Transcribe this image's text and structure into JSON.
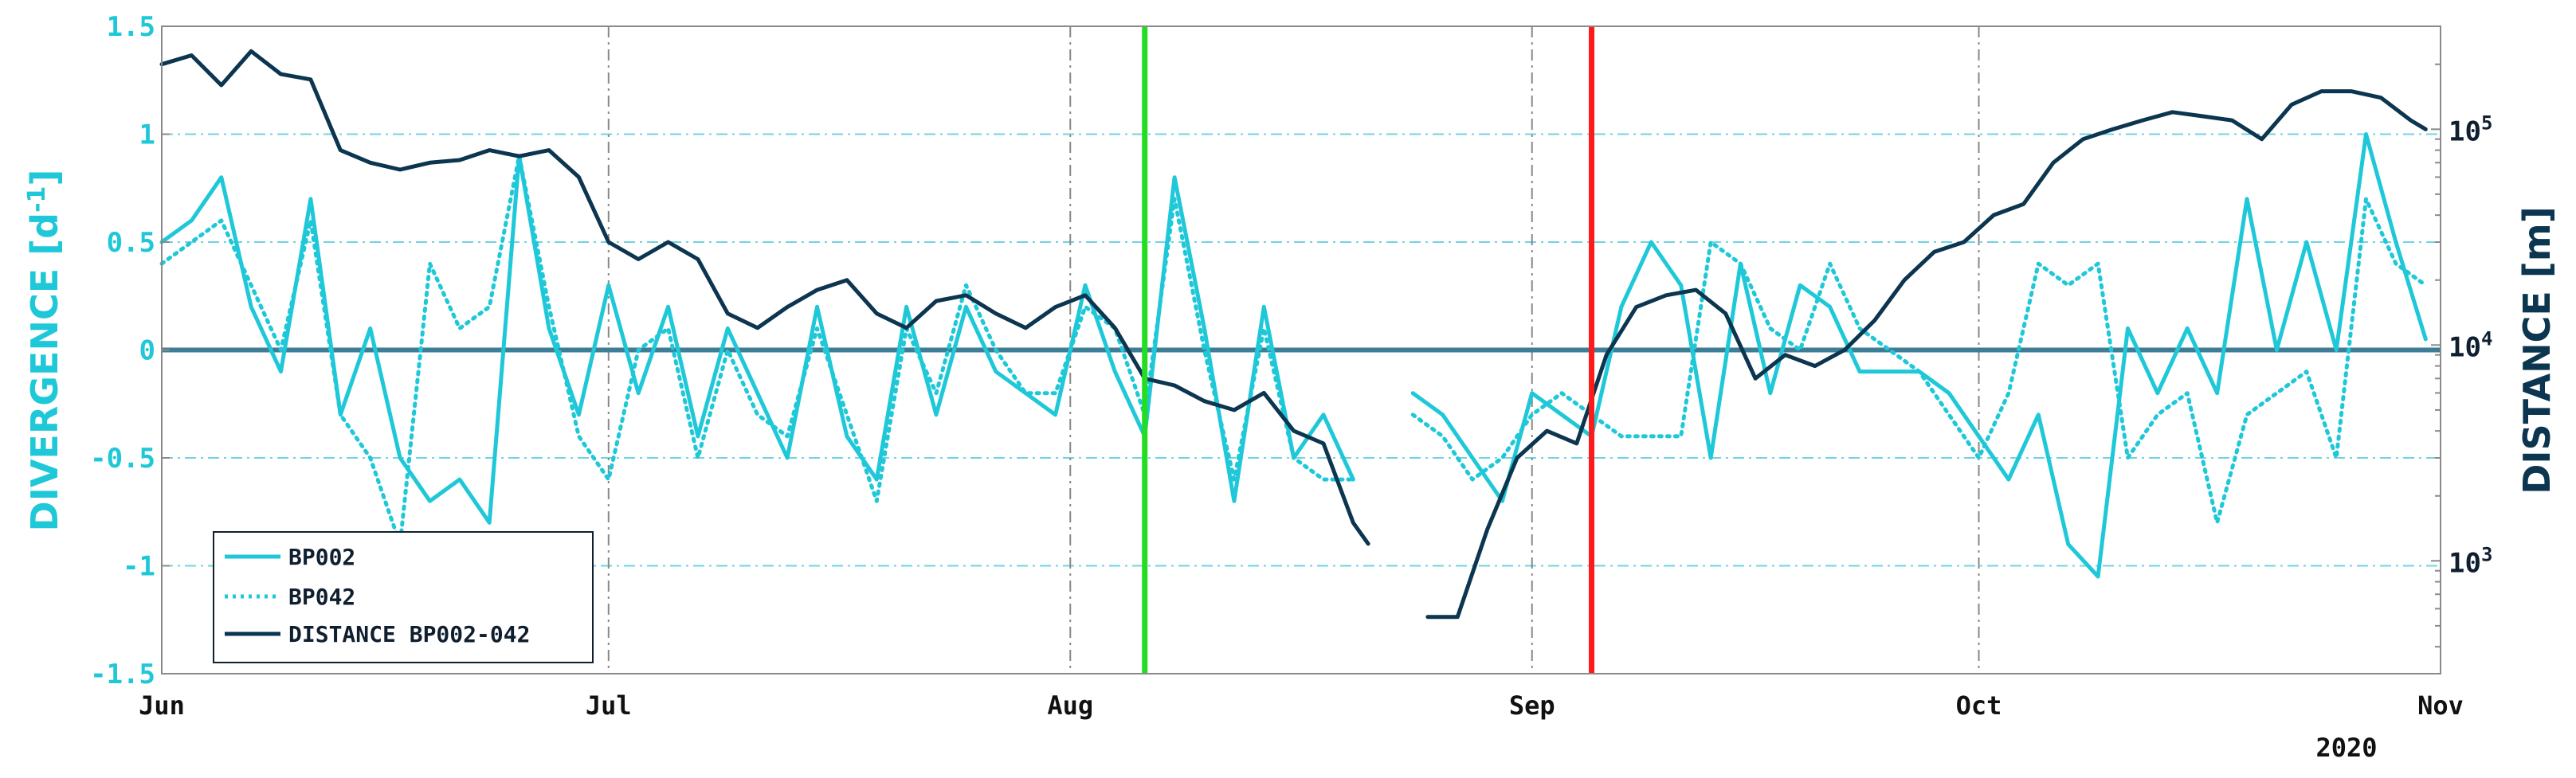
{
  "chart_data": {
    "type": "line",
    "year_label": "2020",
    "x_axis": {
      "ticks": [
        "Jun",
        "Jul",
        "Aug",
        "Sep",
        "Oct",
        "Nov"
      ],
      "range": [
        "2020-06-01",
        "2020-11-01"
      ]
    },
    "left_axis": {
      "label": "DIVERGENCE [d",
      "label_sup": "-1",
      "label_end": "]",
      "range": [
        -1.5,
        1.5
      ],
      "ticks": [
        "1.5",
        "1",
        "0.5",
        "0",
        "-0.5",
        "-1",
        "-1.5"
      ],
      "color": "#1fc8d8"
    },
    "right_axis": {
      "label": "DISTANCE [m]",
      "scale": "log",
      "range": [
        300,
        300000
      ],
      "ticks": [
        {
          "base": "10",
          "exp": "5",
          "value": 100000
        },
        {
          "base": "10",
          "exp": "4",
          "value": 10000
        },
        {
          "base": "10",
          "exp": "3",
          "value": 1000
        }
      ],
      "color": "#0c3550"
    },
    "grid": true,
    "zero_line": 0,
    "vertical_markers": [
      {
        "x": "2020-08-06",
        "color": "#22dd22"
      },
      {
        "x": "2020-09-05",
        "color": "#ff1a1a"
      }
    ],
    "legend": {
      "position": "bottom-left",
      "entries": [
        {
          "label": "BP002",
          "style": "solid",
          "color": "#1fc8d8"
        },
        {
          "label": "BP042",
          "style": "dotted",
          "color": "#1fc8d8"
        },
        {
          "label": "DISTANCE BP002-042",
          "style": "solid",
          "color": "#0c3550"
        }
      ]
    },
    "series": [
      {
        "name": "BP002",
        "axis": "left",
        "style": "solid",
        "color": "#1fc8d8",
        "segments": [
          {
            "x": [
              "2020-06-01",
              "2020-06-03",
              "2020-06-05",
              "2020-06-07",
              "2020-06-09",
              "2020-06-11",
              "2020-06-13",
              "2020-06-15",
              "2020-06-17",
              "2020-06-19",
              "2020-06-21",
              "2020-06-23",
              "2020-06-25",
              "2020-06-27",
              "2020-06-29",
              "2020-07-01",
              "2020-07-03",
              "2020-07-05",
              "2020-07-07",
              "2020-07-09",
              "2020-07-11",
              "2020-07-13",
              "2020-07-15",
              "2020-07-17",
              "2020-07-19",
              "2020-07-21",
              "2020-07-23",
              "2020-07-25",
              "2020-07-27",
              "2020-07-29",
              "2020-07-31",
              "2020-08-02",
              "2020-08-04",
              "2020-08-06",
              "2020-08-08",
              "2020-08-10",
              "2020-08-12",
              "2020-08-14",
              "2020-08-16",
              "2020-08-18",
              "2020-08-20"
            ],
            "y": [
              0.5,
              0.6,
              0.8,
              0.2,
              -0.1,
              0.7,
              -0.3,
              0.1,
              -0.5,
              -0.7,
              -0.6,
              -0.8,
              0.9,
              0.1,
              -0.3,
              0.3,
              -0.2,
              0.2,
              -0.4,
              0.1,
              -0.2,
              -0.5,
              0.2,
              -0.4,
              -0.6,
              0.2,
              -0.3,
              0.2,
              -0.1,
              -0.2,
              -0.3,
              0.3,
              -0.1,
              -0.4,
              0.8,
              0.1,
              -0.7,
              0.2,
              -0.5,
              -0.3,
              -0.6
            ]
          },
          {
            "x": [
              "2020-08-24",
              "2020-08-26",
              "2020-08-28",
              "2020-08-30",
              "2020-09-01",
              "2020-09-03",
              "2020-09-05",
              "2020-09-07",
              "2020-09-09",
              "2020-09-11",
              "2020-09-13",
              "2020-09-15",
              "2020-09-17",
              "2020-09-19",
              "2020-09-21",
              "2020-09-23",
              "2020-09-25",
              "2020-09-27",
              "2020-09-29",
              "2020-10-01",
              "2020-10-03",
              "2020-10-05",
              "2020-10-07",
              "2020-10-09",
              "2020-10-11",
              "2020-10-13",
              "2020-10-15",
              "2020-10-17",
              "2020-10-19",
              "2020-10-21",
              "2020-10-23",
              "2020-10-25",
              "2020-10-27",
              "2020-10-29",
              "2020-10-31"
            ],
            "y": [
              -0.2,
              -0.3,
              -0.5,
              -0.7,
              -0.2,
              -0.3,
              -0.4,
              0.2,
              0.5,
              0.3,
              -0.5,
              0.4,
              -0.2,
              0.3,
              0.2,
              -0.1,
              -0.1,
              -0.1,
              -0.2,
              -0.4,
              -0.6,
              -0.3,
              -0.9,
              -1.05,
              0.1,
              -0.2,
              0.1,
              -0.2,
              0.7,
              0.0,
              0.5,
              0.0,
              1.0,
              0.5,
              0.05
            ]
          }
        ]
      },
      {
        "name": "BP042",
        "axis": "left",
        "style": "dotted",
        "color": "#1fc8d8",
        "segments": [
          {
            "x": [
              "2020-06-01",
              "2020-06-03",
              "2020-06-05",
              "2020-06-07",
              "2020-06-09",
              "2020-06-11",
              "2020-06-13",
              "2020-06-15",
              "2020-06-17",
              "2020-06-19",
              "2020-06-21",
              "2020-06-23",
              "2020-06-25",
              "2020-06-27",
              "2020-06-29",
              "2020-07-01",
              "2020-07-03",
              "2020-07-05",
              "2020-07-07",
              "2020-07-09",
              "2020-07-11",
              "2020-07-13",
              "2020-07-15",
              "2020-07-17",
              "2020-07-19",
              "2020-07-21",
              "2020-07-23",
              "2020-07-25",
              "2020-07-27",
              "2020-07-29",
              "2020-07-31",
              "2020-08-02",
              "2020-08-04",
              "2020-08-06",
              "2020-08-08",
              "2020-08-10",
              "2020-08-12",
              "2020-08-14",
              "2020-08-16",
              "2020-08-18",
              "2020-08-20"
            ],
            "y": [
              0.4,
              0.5,
              0.6,
              0.3,
              0.0,
              0.6,
              -0.3,
              -0.5,
              -0.9,
              0.4,
              0.1,
              0.2,
              0.9,
              0.2,
              -0.4,
              -0.6,
              0.0,
              0.1,
              -0.5,
              0.0,
              -0.3,
              -0.4,
              0.1,
              -0.3,
              -0.7,
              0.1,
              -0.2,
              0.3,
              0.0,
              -0.2,
              -0.2,
              0.2,
              0.1,
              -0.3,
              0.7,
              0.0,
              -0.6,
              0.1,
              -0.5,
              -0.6,
              -0.6
            ]
          },
          {
            "x": [
              "2020-08-24",
              "2020-08-26",
              "2020-08-28",
              "2020-08-30",
              "2020-09-01",
              "2020-09-03",
              "2020-09-05",
              "2020-09-07",
              "2020-09-09",
              "2020-09-11",
              "2020-09-13",
              "2020-09-15",
              "2020-09-17",
              "2020-09-19",
              "2020-09-21",
              "2020-09-23",
              "2020-09-25",
              "2020-09-27",
              "2020-09-29",
              "2020-10-01",
              "2020-10-03",
              "2020-10-05",
              "2020-10-07",
              "2020-10-09",
              "2020-10-11",
              "2020-10-13",
              "2020-10-15",
              "2020-10-17",
              "2020-10-19",
              "2020-10-21",
              "2020-10-23",
              "2020-10-25",
              "2020-10-27",
              "2020-10-29",
              "2020-10-31"
            ],
            "y": [
              -0.3,
              -0.4,
              -0.6,
              -0.5,
              -0.3,
              -0.2,
              -0.3,
              -0.4,
              -0.4,
              -0.4,
              0.5,
              0.4,
              0.1,
              0.0,
              0.4,
              0.1,
              0.0,
              -0.1,
              -0.3,
              -0.5,
              -0.2,
              0.4,
              0.3,
              0.4,
              -0.5,
              -0.3,
              -0.2,
              -0.8,
              -0.3,
              -0.2,
              -0.1,
              -0.5,
              0.7,
              0.4,
              0.3
            ]
          }
        ]
      },
      {
        "name": "DISTANCE BP002-042",
        "axis": "right",
        "style": "solid",
        "color": "#0c3550",
        "segments": [
          {
            "x": [
              "2020-06-01",
              "2020-06-03",
              "2020-06-05",
              "2020-06-07",
              "2020-06-09",
              "2020-06-11",
              "2020-06-13",
              "2020-06-15",
              "2020-06-17",
              "2020-06-19",
              "2020-06-21",
              "2020-06-23",
              "2020-06-25",
              "2020-06-27",
              "2020-06-29",
              "2020-07-01",
              "2020-07-03",
              "2020-07-05",
              "2020-07-07",
              "2020-07-09",
              "2020-07-11",
              "2020-07-13",
              "2020-07-15",
              "2020-07-17",
              "2020-07-19",
              "2020-07-21",
              "2020-07-23",
              "2020-07-25",
              "2020-07-27",
              "2020-07-29",
              "2020-07-31",
              "2020-08-02",
              "2020-08-04",
              "2020-08-06",
              "2020-08-08",
              "2020-08-10",
              "2020-08-12",
              "2020-08-14",
              "2020-08-16",
              "2020-08-18",
              "2020-08-20",
              "2020-08-21"
            ],
            "y": [
              200000,
              220000,
              160000,
              230000,
              180000,
              170000,
              80000,
              70000,
              65000,
              70000,
              72000,
              80000,
              75000,
              80000,
              60000,
              30000,
              25000,
              30000,
              25000,
              14000,
              12000,
              15000,
              18000,
              20000,
              14000,
              12000,
              16000,
              17000,
              14000,
              12000,
              15000,
              17000,
              12000,
              7000,
              6500,
              5500,
              5000,
              6000,
              4000,
              3500,
              1500,
              1200
            ]
          },
          {
            "x": [
              "2020-08-25",
              "2020-08-27",
              "2020-08-29",
              "2020-08-31",
              "2020-09-02",
              "2020-09-04",
              "2020-09-06",
              "2020-09-08",
              "2020-09-10",
              "2020-09-12",
              "2020-09-14",
              "2020-09-16",
              "2020-09-18",
              "2020-09-20",
              "2020-09-22",
              "2020-09-24",
              "2020-09-26",
              "2020-09-28",
              "2020-09-30",
              "2020-10-02",
              "2020-10-04",
              "2020-10-06",
              "2020-10-08",
              "2020-10-10",
              "2020-10-12",
              "2020-10-14",
              "2020-10-16",
              "2020-10-18",
              "2020-10-20",
              "2020-10-22",
              "2020-10-24",
              "2020-10-26",
              "2020-10-28",
              "2020-10-30",
              "2020-10-31"
            ],
            "y": [
              550,
              550,
              1400,
              3000,
              4000,
              3500,
              9000,
              15000,
              17000,
              18000,
              14000,
              7000,
              9000,
              8000,
              9500,
              13000,
              20000,
              27000,
              30000,
              40000,
              45000,
              70000,
              90000,
              100000,
              110000,
              120000,
              115000,
              110000,
              90000,
              130000,
              150000,
              150000,
              140000,
              110000,
              100000
            ]
          }
        ]
      }
    ]
  }
}
